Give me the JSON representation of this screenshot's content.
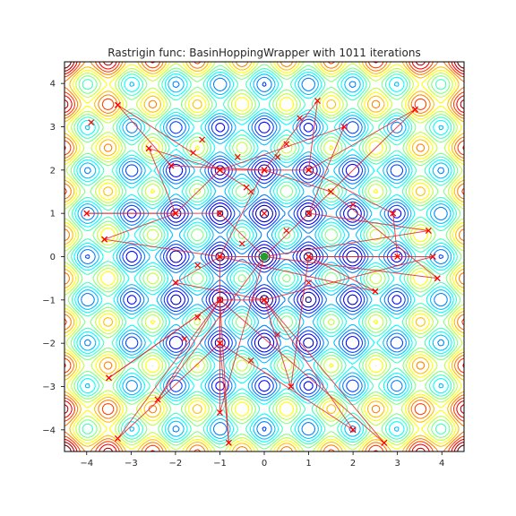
{
  "chart_data": {
    "type": "contour",
    "title": "Rastrigin func: BasinHoppingWrapper with 1011 iterations",
    "xlabel": "",
    "ylabel": "",
    "xlim": [
      -4.5,
      4.5
    ],
    "ylim": [
      -4.5,
      4.5
    ],
    "x_ticks": [
      -4,
      -3,
      -2,
      -1,
      0,
      1,
      2,
      3,
      4
    ],
    "y_ticks": [
      -4,
      -3,
      -2,
      -1,
      0,
      1,
      2,
      3,
      4
    ],
    "grid": false,
    "contour_function": "rastrigin",
    "contour_colormap": "jet",
    "path_color": "#e8262b",
    "marker_color": "#ff0000",
    "best_point": {
      "x": 0,
      "y": 0,
      "color": "#1f9e2e"
    },
    "iterations": 1011,
    "sample_points": [
      [
        -3.9,
        3.1
      ],
      [
        -3.3,
        3.5
      ],
      [
        -2.6,
        2.5
      ],
      [
        -2.1,
        2.1
      ],
      [
        -1.6,
        2.4
      ],
      [
        -1.4,
        2.7
      ],
      [
        -1.0,
        2.0
      ],
      [
        -0.6,
        2.3
      ],
      [
        -0.3,
        1.5
      ],
      [
        0.0,
        2.0
      ],
      [
        0.3,
        2.3
      ],
      [
        0.5,
        2.6
      ],
      [
        1.0,
        2.0
      ],
      [
        1.2,
        3.6
      ],
      [
        0.8,
        3.2
      ],
      [
        1.8,
        3.0
      ],
      [
        3.4,
        3.4
      ],
      [
        1.5,
        1.5
      ],
      [
        -4.0,
        1.0
      ],
      [
        -3.6,
        0.4
      ],
      [
        -2.0,
        1.0
      ],
      [
        -1.0,
        1.0
      ],
      [
        0.0,
        1.0
      ],
      [
        1.0,
        1.0
      ],
      [
        2.0,
        1.2
      ],
      [
        2.9,
        1.0
      ],
      [
        3.7,
        0.6
      ],
      [
        3.0,
        0.0
      ],
      [
        3.8,
        0.0
      ],
      [
        3.9,
        -0.5
      ],
      [
        -1.0,
        0.0
      ],
      [
        0.0,
        0.0
      ],
      [
        1.0,
        0.0
      ],
      [
        0.5,
        0.6
      ],
      [
        -0.5,
        0.3
      ],
      [
        -1.5,
        -0.2
      ],
      [
        -1.0,
        -1.0
      ],
      [
        0.0,
        -1.0
      ],
      [
        1.0,
        -0.6
      ],
      [
        2.5,
        -0.8
      ],
      [
        -2.0,
        -0.6
      ],
      [
        -1.5,
        -1.4
      ],
      [
        -1.0,
        -2.0
      ],
      [
        -1.8,
        -1.9
      ],
      [
        -2.4,
        -3.3
      ],
      [
        -3.5,
        -2.8
      ],
      [
        -3.3,
        -4.2
      ],
      [
        -1.0,
        -3.6
      ],
      [
        -0.8,
        -4.3
      ],
      [
        0.6,
        -3.0
      ],
      [
        0.3,
        -1.8
      ],
      [
        2.0,
        -4.0
      ],
      [
        2.7,
        -4.3
      ],
      [
        -0.3,
        -2.4
      ]
    ],
    "trajectory": [
      [
        -0.4,
        1.6
      ],
      [
        -3.3,
        3.5
      ],
      [
        -2.1,
        2.1
      ],
      [
        0.0,
        2.0
      ],
      [
        1.2,
        3.6
      ],
      [
        1.0,
        2.0
      ],
      [
        -1.0,
        2.0
      ],
      [
        -2.0,
        1.0
      ],
      [
        -4.0,
        1.0
      ],
      [
        -1.0,
        1.0
      ],
      [
        0.0,
        0.0
      ],
      [
        1.0,
        1.0
      ],
      [
        3.4,
        3.4
      ],
      [
        1.0,
        2.0
      ],
      [
        2.9,
        1.0
      ],
      [
        3.0,
        0.0
      ],
      [
        1.0,
        0.0
      ],
      [
        3.8,
        0.0
      ],
      [
        0.0,
        -1.0
      ],
      [
        -1.0,
        -1.0
      ],
      [
        -3.5,
        -2.8
      ],
      [
        -1.0,
        -1.0
      ],
      [
        -2.4,
        -3.3
      ],
      [
        0.0,
        0.0
      ],
      [
        -1.0,
        0.0
      ],
      [
        -1.0,
        -2.0
      ],
      [
        -0.8,
        -4.3
      ],
      [
        -1.0,
        -1.0
      ],
      [
        2.7,
        -4.3
      ],
      [
        0.0,
        -1.0
      ],
      [
        0.6,
        -3.0
      ],
      [
        1.0,
        0.0
      ],
      [
        2.5,
        -0.8
      ],
      [
        -1.0,
        0.0
      ],
      [
        -3.6,
        0.4
      ],
      [
        -2.0,
        1.0
      ],
      [
        -2.6,
        2.5
      ],
      [
        -1.0,
        2.0
      ],
      [
        1.8,
        3.0
      ],
      [
        1.0,
        1.0
      ],
      [
        3.7,
        0.6
      ],
      [
        0.0,
        0.0
      ],
      [
        -1.0,
        -3.6
      ],
      [
        -1.0,
        -1.0
      ],
      [
        -3.3,
        -4.2
      ],
      [
        -1.0,
        -2.0
      ],
      [
        2.0,
        -4.0
      ],
      [
        0.0,
        -1.0
      ],
      [
        -2.0,
        -0.6
      ],
      [
        -1.0,
        0.0
      ],
      [
        0.0,
        2.0
      ],
      [
        1.5,
        1.5
      ],
      [
        3.9,
        -0.5
      ],
      [
        0.0,
        0.0
      ]
    ]
  }
}
